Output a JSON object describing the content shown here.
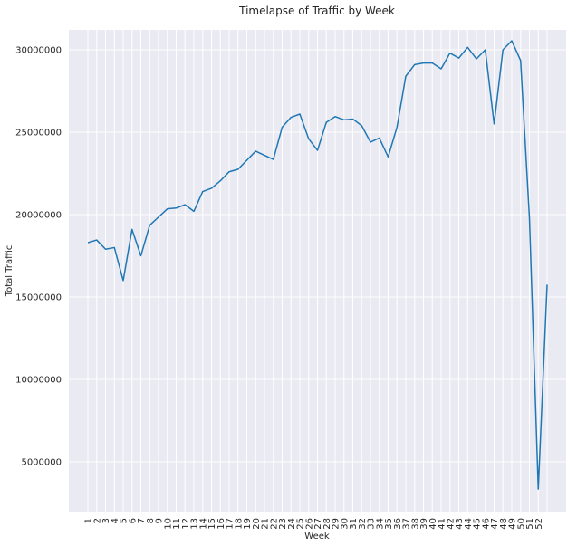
{
  "chart_data": {
    "type": "line",
    "title": "Timelapse of Traffic by Week",
    "xlabel": "Week",
    "ylabel": "Total Traffic",
    "categories": [
      "1",
      "2",
      "3",
      "4",
      "5",
      "6",
      "7",
      "8",
      "9",
      "10",
      "11",
      "12",
      "13",
      "14",
      "15",
      "16",
      "17",
      "18",
      "19",
      "20",
      "21",
      "22",
      "23",
      "24",
      "25",
      "26",
      "27",
      "28",
      "29",
      "30",
      "31",
      "32",
      "33",
      "34",
      "35",
      "36",
      "37",
      "38",
      "39",
      "40",
      "41",
      "42",
      "43",
      "44",
      "45",
      "46",
      "47",
      "48",
      "49",
      "50",
      "51",
      "52",
      null
    ],
    "series": [
      {
        "name": "Total Traffic",
        "color": "#1f77b4",
        "values": [
          18300000,
          18460000,
          17900000,
          18000000,
          16000000,
          19100000,
          17500000,
          19350000,
          19850000,
          20350000,
          20400000,
          20600000,
          20200000,
          21400000,
          21600000,
          22050000,
          22600000,
          22750000,
          23300000,
          23850000,
          23600000,
          23350000,
          25300000,
          25900000,
          26100000,
          24600000,
          23900000,
          25600000,
          25950000,
          25750000,
          25800000,
          25400000,
          24400000,
          24650000,
          23500000,
          25300000,
          28400000,
          29100000,
          29200000,
          29200000,
          28850000,
          29800000,
          29500000,
          30150000,
          29450000,
          30000000,
          25500000,
          30000000,
          30550000,
          29350000,
          19800000,
          3350000,
          15750000
        ]
      }
    ],
    "ylim": [
      1980000,
      31210000
    ],
    "yticks": [
      5000000,
      10000000,
      15000000,
      20000000,
      25000000,
      30000000
    ],
    "grid": true
  }
}
